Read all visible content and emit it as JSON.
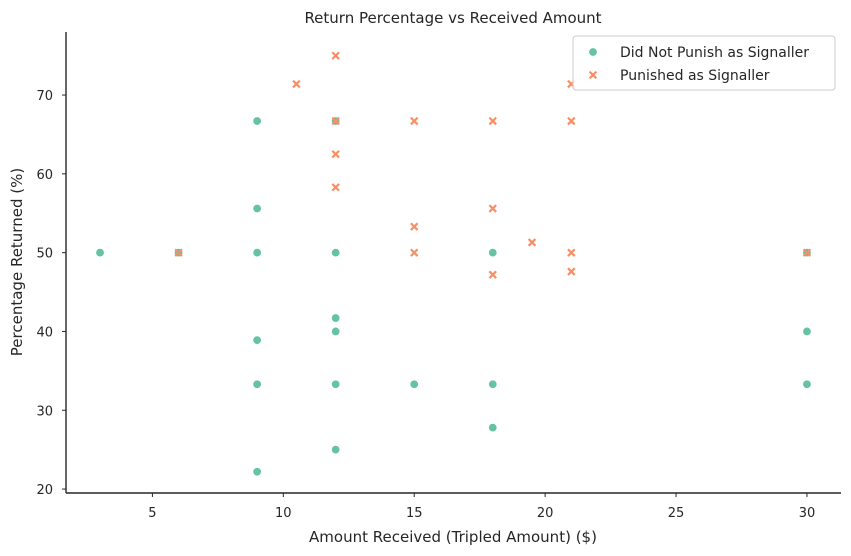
{
  "chart_data": {
    "type": "scatter",
    "title": "Return Percentage vs Received Amount",
    "xlabel": "Amount Received (Tripled Amount) ($)",
    "ylabel": "Percentage Returned (%)",
    "xlim": [
      1.7,
      31.3
    ],
    "ylim": [
      19.5,
      78
    ],
    "xticks": [
      5,
      10,
      15,
      20,
      25,
      30
    ],
    "yticks": [
      20,
      30,
      40,
      50,
      60,
      70
    ],
    "grid": false,
    "legend_position": "top-right",
    "series": [
      {
        "name": "Did Not Punish as Signaller",
        "marker": "circle",
        "color": "#66c2a5",
        "points": [
          [
            3,
            50
          ],
          [
            6,
            50
          ],
          [
            9,
            66.7
          ],
          [
            9,
            55.6
          ],
          [
            9,
            50
          ],
          [
            9,
            38.9
          ],
          [
            9,
            33.3
          ],
          [
            9,
            22.2
          ],
          [
            12,
            66.7
          ],
          [
            12,
            50
          ],
          [
            12,
            41.7
          ],
          [
            12,
            40
          ],
          [
            12,
            33.3
          ],
          [
            12,
            25
          ],
          [
            15,
            33.3
          ],
          [
            18,
            50
          ],
          [
            18,
            33.3
          ],
          [
            18,
            27.8
          ],
          [
            30,
            50
          ],
          [
            30,
            40
          ],
          [
            30,
            33.3
          ]
        ]
      },
      {
        "name": "Punished as Signaller",
        "marker": "x",
        "color": "#fc8d62",
        "points": [
          [
            6,
            50
          ],
          [
            10.5,
            71.4
          ],
          [
            12,
            75
          ],
          [
            12,
            66.7
          ],
          [
            12,
            62.5
          ],
          [
            12,
            58.3
          ],
          [
            15,
            66.7
          ],
          [
            15,
            53.3
          ],
          [
            15,
            50
          ],
          [
            18,
            66.7
          ],
          [
            18,
            55.6
          ],
          [
            18,
            47.2
          ],
          [
            19.5,
            51.3
          ],
          [
            21,
            71.4
          ],
          [
            21,
            66.7
          ],
          [
            21,
            50
          ],
          [
            21,
            47.6
          ],
          [
            30,
            50
          ]
        ]
      }
    ]
  }
}
